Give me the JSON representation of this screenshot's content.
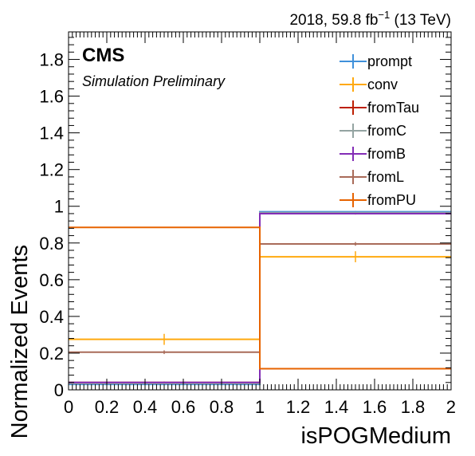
{
  "header": {
    "lumi_prefix": "2018, 59.8 fb",
    "lumi_exp": "−1",
    "lumi_suffix": " (13 TeV)",
    "cms": "CMS",
    "preliminary": "Simulation Preliminary"
  },
  "chart_data": {
    "type": "histogram",
    "xlabel": "isPOGMedium",
    "ylabel": "Normalized Events",
    "xlim": [
      0,
      2
    ],
    "ylim": [
      0,
      1.95
    ],
    "x_ticks": [
      0,
      0.2,
      0.4,
      0.6,
      0.8,
      1,
      1.2,
      1.4,
      1.6,
      1.8,
      2
    ],
    "x_tick_labels": [
      "0",
      "0.2",
      "0.4",
      "0.6",
      "0.8",
      "1",
      "1.2",
      "1.4",
      "1.6",
      "1.8",
      "2"
    ],
    "y_ticks": [
      0,
      0.2,
      0.4,
      0.6,
      0.8,
      1,
      1.2,
      1.4,
      1.6,
      1.8
    ],
    "y_tick_labels": [
      "0",
      "0.2",
      "0.4",
      "0.6",
      "0.8",
      "1",
      "1.2",
      "1.4",
      "1.6",
      "1.8"
    ],
    "bin_edges": [
      0,
      1,
      2
    ],
    "legend_position": "top-right",
    "series": [
      {
        "name": "prompt",
        "color": "#3f90da",
        "values": [
          0.03,
          0.97
        ],
        "errors": [
          0.004,
          0.004
        ]
      },
      {
        "name": "conv",
        "color": "#ffa90e",
        "values": [
          0.275,
          0.725
        ],
        "errors": [
          0.03,
          0.03
        ]
      },
      {
        "name": "fromTau",
        "color": "#bd1f01",
        "values": [
          0.04,
          0.96
        ],
        "errors": [
          0.005,
          0.005
        ]
      },
      {
        "name": "fromC",
        "color": "#94a4a2",
        "values": [
          0.035,
          0.965
        ],
        "errors": [
          0.004,
          0.004
        ]
      },
      {
        "name": "fromB",
        "color": "#832db6",
        "values": [
          0.04,
          0.96
        ],
        "errors": [
          0.003,
          0.003
        ]
      },
      {
        "name": "fromL",
        "color": "#a96b59",
        "values": [
          0.205,
          0.795
        ],
        "errors": [
          0.01,
          0.01
        ]
      },
      {
        "name": "fromPU",
        "color": "#e76300",
        "values": [
          0.885,
          0.115
        ],
        "errors": [
          0.003,
          0.003
        ]
      }
    ]
  }
}
